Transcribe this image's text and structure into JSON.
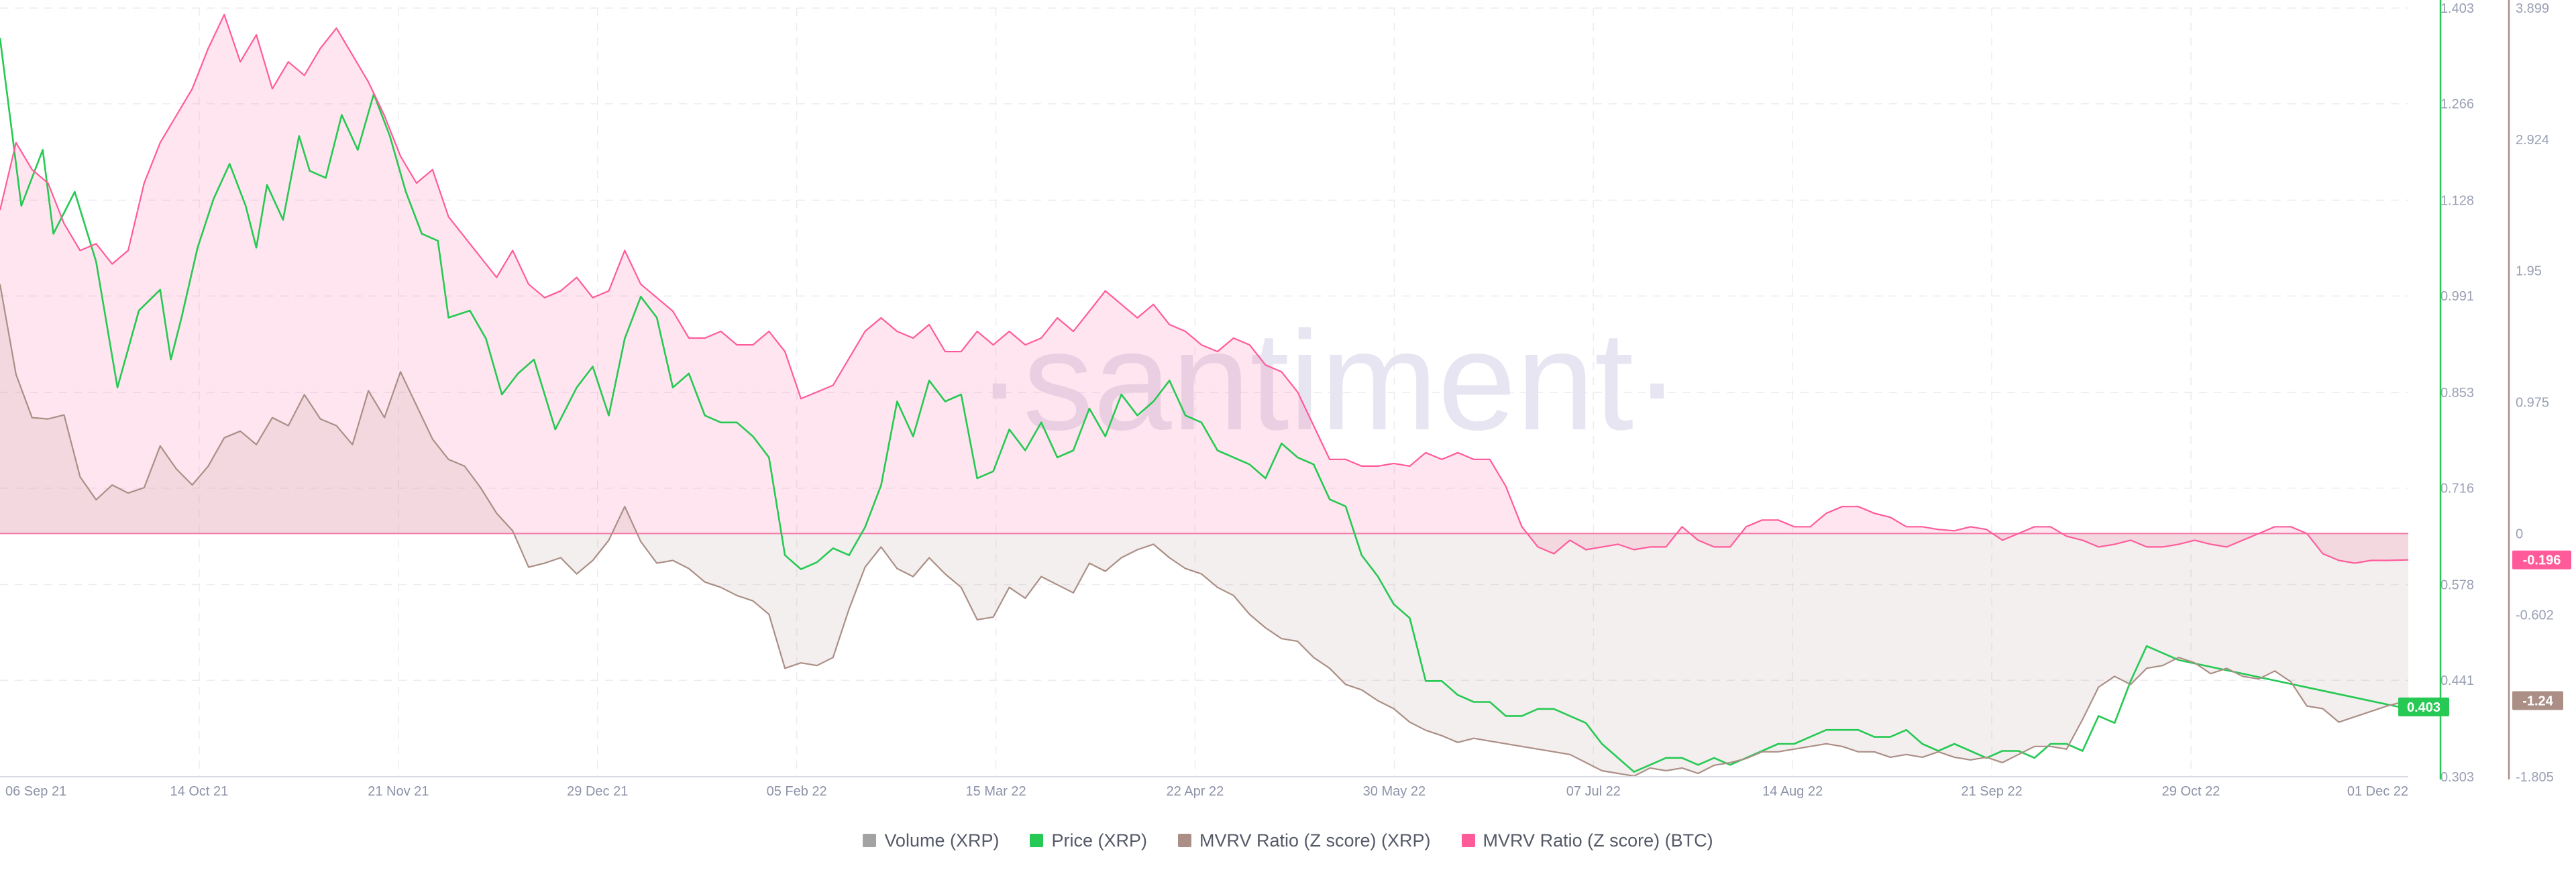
{
  "watermark": "·santiment·",
  "chart_data": {
    "type": "line",
    "x_ticks": [
      "06 Sep 21",
      "14 Oct 21",
      "21 Nov 21",
      "29 Dec 21",
      "05 Feb 22",
      "15 Mar 22",
      "22 Apr 22",
      "30 May 22",
      "07 Jul 22",
      "14 Aug 22",
      "21 Sep 22",
      "29 Oct 22",
      "01 Dec 22"
    ],
    "price_axis": {
      "ticks": [
        "1.403",
        "1.266",
        "1.128",
        "0.991",
        "0.853",
        "0.716",
        "0.578",
        "0.441",
        "0.303"
      ],
      "range": [
        0.303,
        1.403
      ]
    },
    "mvrv_axis": {
      "ticks": [
        "3.899",
        "2.924",
        "1.95",
        "0.975",
        "0",
        "-0.602",
        "-1.805"
      ],
      "range": [
        -1.805,
        3.899
      ]
    },
    "grid": true,
    "legend_position": "bottom",
    "legend": [
      {
        "label": "Volume (XRP)",
        "color": "#a3a3a3"
      },
      {
        "label": "Price (XRP)",
        "color": "#26c953"
      },
      {
        "label": "MVRV Ratio (Z score) (XRP)",
        "color": "#ab8f86"
      },
      {
        "label": "MVRV Ratio (Z score) (BTC)",
        "color": "#ff5b9b"
      }
    ],
    "badges": [
      {
        "label": "-0.196",
        "color": "#ff5b9b"
      },
      {
        "label": "-1.24",
        "color": "#ab8f86"
      },
      {
        "label": "0.403",
        "color": "#26c953"
      }
    ],
    "series": [
      {
        "name": "Price (XRP)",
        "axis": "price",
        "color": "#26c953",
        "x": [
          0,
          4,
          8,
          10,
          14,
          18,
          22,
          26,
          30,
          32,
          34,
          37,
          40,
          43,
          46,
          48,
          50,
          53,
          56,
          58,
          61,
          64,
          67,
          70,
          73,
          76,
          79,
          82,
          84,
          88,
          91,
          94,
          97,
          100,
          104,
          108,
          111,
          114,
          117,
          120,
          123,
          126,
          129,
          132,
          135,
          138,
          141,
          144,
          147,
          150,
          153,
          156,
          159,
          162,
          165,
          168,
          171,
          174,
          177,
          180,
          183,
          186,
          189,
          192,
          195,
          198,
          201,
          204,
          207,
          210,
          213,
          216,
          219,
          222,
          225,
          228,
          231,
          234,
          237,
          240,
          243,
          246,
          249,
          252,
          255,
          258,
          261,
          264,
          267,
          270,
          273,
          276,
          279,
          282,
          285,
          288,
          291,
          294,
          297,
          300,
          303,
          306,
          309,
          312,
          315,
          318,
          321,
          324,
          327,
          330,
          333,
          336,
          339,
          342,
          345,
          348,
          351,
          354,
          357,
          360,
          363,
          366,
          369,
          372,
          375,
          378,
          381,
          384,
          387,
          390,
          393,
          396,
          399,
          402,
          405,
          408,
          451
        ],
        "values": [
          1.36,
          1.12,
          1.2,
          1.08,
          1.14,
          1.04,
          0.86,
          0.97,
          1.0,
          0.9,
          0.96,
          1.06,
          1.13,
          1.18,
          1.12,
          1.06,
          1.15,
          1.1,
          1.22,
          1.17,
          1.16,
          1.25,
          1.2,
          1.28,
          1.22,
          1.14,
          1.08,
          1.07,
          0.96,
          0.97,
          0.93,
          0.85,
          0.88,
          0.9,
          0.8,
          0.86,
          0.89,
          0.82,
          0.93,
          0.99,
          0.96,
          0.86,
          0.88,
          0.82,
          0.81,
          0.81,
          0.79,
          0.76,
          0.62,
          0.6,
          0.61,
          0.63,
          0.62,
          0.66,
          0.72,
          0.84,
          0.79,
          0.87,
          0.84,
          0.85,
          0.73,
          0.74,
          0.8,
          0.77,
          0.81,
          0.76,
          0.77,
          0.83,
          0.79,
          0.85,
          0.82,
          0.84,
          0.87,
          0.82,
          0.81,
          0.77,
          0.76,
          0.75,
          0.73,
          0.78,
          0.76,
          0.75,
          0.7,
          0.69,
          0.62,
          0.59,
          0.55,
          0.53,
          0.44,
          0.44,
          0.42,
          0.41,
          0.41,
          0.39,
          0.39,
          0.4,
          0.4,
          0.39,
          0.38,
          0.35,
          0.33,
          0.31,
          0.32,
          0.33,
          0.33,
          0.32,
          0.33,
          0.32,
          0.33,
          0.34,
          0.35,
          0.35,
          0.36,
          0.37,
          0.37,
          0.37,
          0.36,
          0.36,
          0.37,
          0.35,
          0.34,
          0.35,
          0.34,
          0.33,
          0.34,
          0.34,
          0.33,
          0.35,
          0.35,
          0.34,
          0.39,
          0.38,
          0.44,
          0.49,
          0.48,
          0.47,
          0.4
        ]
      },
      {
        "name": "MVRV Ratio (Z score) (XRP)",
        "axis": "mvrv",
        "color": "#ab8f86",
        "x": [
          0,
          3,
          6,
          9,
          12,
          15,
          18,
          21,
          24,
          27,
          30,
          33,
          36,
          39,
          42,
          45,
          48,
          51,
          54,
          57,
          60,
          63,
          66,
          69,
          72,
          75,
          78,
          81,
          84,
          87,
          90,
          93,
          96,
          99,
          102,
          105,
          108,
          111,
          114,
          117,
          120,
          123,
          126,
          129,
          132,
          135,
          138,
          141,
          144,
          147,
          150,
          153,
          156,
          159,
          162,
          165,
          168,
          171,
          174,
          177,
          180,
          183,
          186,
          189,
          192,
          195,
          198,
          201,
          204,
          207,
          210,
          213,
          216,
          219,
          222,
          225,
          228,
          231,
          234,
          237,
          240,
          243,
          246,
          249,
          252,
          255,
          258,
          261,
          264,
          267,
          270,
          273,
          276,
          279,
          282,
          285,
          288,
          291,
          294,
          297,
          300,
          303,
          306,
          309,
          312,
          315,
          318,
          321,
          324,
          327,
          330,
          333,
          336,
          339,
          342,
          345,
          348,
          351,
          354,
          357,
          360,
          363,
          366,
          369,
          372,
          375,
          378,
          381,
          384,
          387,
          390,
          393,
          396,
          399,
          402,
          405,
          408,
          411,
          414,
          417,
          420,
          423,
          426,
          429,
          432,
          435,
          438,
          441,
          444,
          447,
          451
        ],
        "values": [
          1.85,
          1.18,
          0.86,
          0.85,
          0.88,
          0.42,
          0.25,
          0.36,
          0.3,
          0.34,
          0.65,
          0.48,
          0.36,
          0.5,
          0.71,
          0.76,
          0.66,
          0.86,
          0.8,
          1.03,
          0.85,
          0.8,
          0.66,
          1.06,
          0.86,
          1.2,
          0.95,
          0.7,
          0.55,
          0.5,
          0.34,
          0.15,
          0.02,
          -0.25,
          -0.22,
          -0.18,
          -0.3,
          -0.2,
          -0.05,
          0.2,
          -0.06,
          -0.22,
          -0.2,
          -0.26,
          -0.36,
          -0.4,
          -0.46,
          -0.5,
          -0.6,
          -1.0,
          -0.96,
          -0.98,
          -0.92,
          -0.56,
          -0.25,
          -0.1,
          -0.26,
          -0.32,
          -0.18,
          -0.3,
          -0.4,
          -0.64,
          -0.62,
          -0.4,
          -0.48,
          -0.32,
          -0.38,
          -0.44,
          -0.22,
          -0.28,
          -0.18,
          -0.12,
          -0.08,
          -0.18,
          -0.26,
          -0.3,
          -0.4,
          -0.46,
          -0.6,
          -0.7,
          -0.78,
          -0.8,
          -0.92,
          -1.0,
          -1.12,
          -1.16,
          -1.24,
          -1.3,
          -1.4,
          -1.46,
          -1.5,
          -1.55,
          -1.52,
          -1.54,
          -1.56,
          -1.58,
          -1.6,
          -1.62,
          -1.64,
          -1.7,
          -1.76,
          -1.78,
          -1.8,
          -1.74,
          -1.76,
          -1.74,
          -1.78,
          -1.72,
          -1.7,
          -1.67,
          -1.62,
          -1.62,
          -1.6,
          -1.58,
          -1.56,
          -1.58,
          -1.62,
          -1.62,
          -1.66,
          -1.64,
          -1.66,
          -1.62,
          -1.66,
          -1.68,
          -1.66,
          -1.7,
          -1.64,
          -1.58,
          -1.58,
          -1.6,
          -1.38,
          -1.14,
          -1.06,
          -1.12,
          -1.0,
          -0.98,
          -0.92,
          -0.96,
          -1.04,
          -1.0,
          -1.06,
          -1.08,
          -1.02,
          -1.1,
          -1.28,
          -1.3,
          -1.4,
          -1.36,
          -1.32,
          -1.28,
          -1.24
        ]
      },
      {
        "name": "MVRV Ratio (Z score) (BTC)",
        "axis": "mvrv",
        "color": "#ff5b9b",
        "x": [
          0,
          3,
          6,
          9,
          12,
          15,
          18,
          21,
          24,
          27,
          30,
          33,
          36,
          39,
          42,
          45,
          48,
          51,
          54,
          57,
          60,
          63,
          66,
          69,
          72,
          75,
          78,
          81,
          84,
          87,
          90,
          93,
          96,
          99,
          102,
          105,
          108,
          111,
          114,
          117,
          120,
          123,
          126,
          129,
          132,
          135,
          138,
          141,
          144,
          147,
          150,
          153,
          156,
          159,
          162,
          165,
          168,
          171,
          174,
          177,
          180,
          183,
          186,
          189,
          192,
          195,
          198,
          201,
          204,
          207,
          210,
          213,
          216,
          219,
          222,
          225,
          228,
          231,
          234,
          237,
          240,
          243,
          246,
          249,
          252,
          255,
          258,
          261,
          264,
          267,
          270,
          273,
          276,
          279,
          282,
          285,
          288,
          291,
          294,
          297,
          300,
          303,
          306,
          309,
          312,
          315,
          318,
          321,
          324,
          327,
          330,
          333,
          336,
          339,
          342,
          345,
          348,
          351,
          354,
          357,
          360,
          363,
          366,
          369,
          372,
          375,
          378,
          381,
          384,
          387,
          390,
          393,
          396,
          399,
          402,
          405,
          408,
          411,
          414,
          417,
          420,
          423,
          426,
          429,
          432,
          435,
          438,
          441,
          444,
          447,
          451
        ],
        "values": [
          2.4,
          2.9,
          2.7,
          2.6,
          2.3,
          2.1,
          2.15,
          2.0,
          2.1,
          2.6,
          2.9,
          3.1,
          3.3,
          3.6,
          3.85,
          3.5,
          3.7,
          3.3,
          3.5,
          3.4,
          3.6,
          3.75,
          3.55,
          3.35,
          3.1,
          2.8,
          2.6,
          2.7,
          2.35,
          2.2,
          2.05,
          1.9,
          2.1,
          1.85,
          1.75,
          1.8,
          1.9,
          1.75,
          1.8,
          2.1,
          1.85,
          1.75,
          1.65,
          1.45,
          1.45,
          1.5,
          1.4,
          1.4,
          1.5,
          1.35,
          1.0,
          1.05,
          1.1,
          1.3,
          1.5,
          1.6,
          1.5,
          1.45,
          1.55,
          1.35,
          1.35,
          1.5,
          1.4,
          1.5,
          1.4,
          1.45,
          1.6,
          1.5,
          1.65,
          1.8,
          1.7,
          1.6,
          1.7,
          1.55,
          1.5,
          1.4,
          1.35,
          1.45,
          1.4,
          1.25,
          1.2,
          1.05,
          0.8,
          0.55,
          0.55,
          0.5,
          0.5,
          0.52,
          0.5,
          0.6,
          0.55,
          0.6,
          0.55,
          0.55,
          0.35,
          0.05,
          -0.1,
          -0.15,
          -0.05,
          -0.12,
          -0.1,
          -0.08,
          -0.12,
          -0.1,
          -0.1,
          0.05,
          -0.05,
          -0.1,
          -0.1,
          0.05,
          0.1,
          0.1,
          0.05,
          0.05,
          0.15,
          0.2,
          0.2,
          0.15,
          0.12,
          0.05,
          0.05,
          0.03,
          0.02,
          0.05,
          0.03,
          -0.05,
          0.0,
          0.05,
          0.05,
          -0.02,
          -0.05,
          -0.1,
          -0.08,
          -0.05,
          -0.1,
          -0.1,
          -0.08,
          -0.05,
          -0.08,
          -0.1,
          -0.05,
          0.0,
          0.05,
          0.05,
          0.0,
          -0.15,
          -0.2,
          -0.22,
          -0.2,
          -0.2,
          -0.196
        ]
      }
    ]
  }
}
